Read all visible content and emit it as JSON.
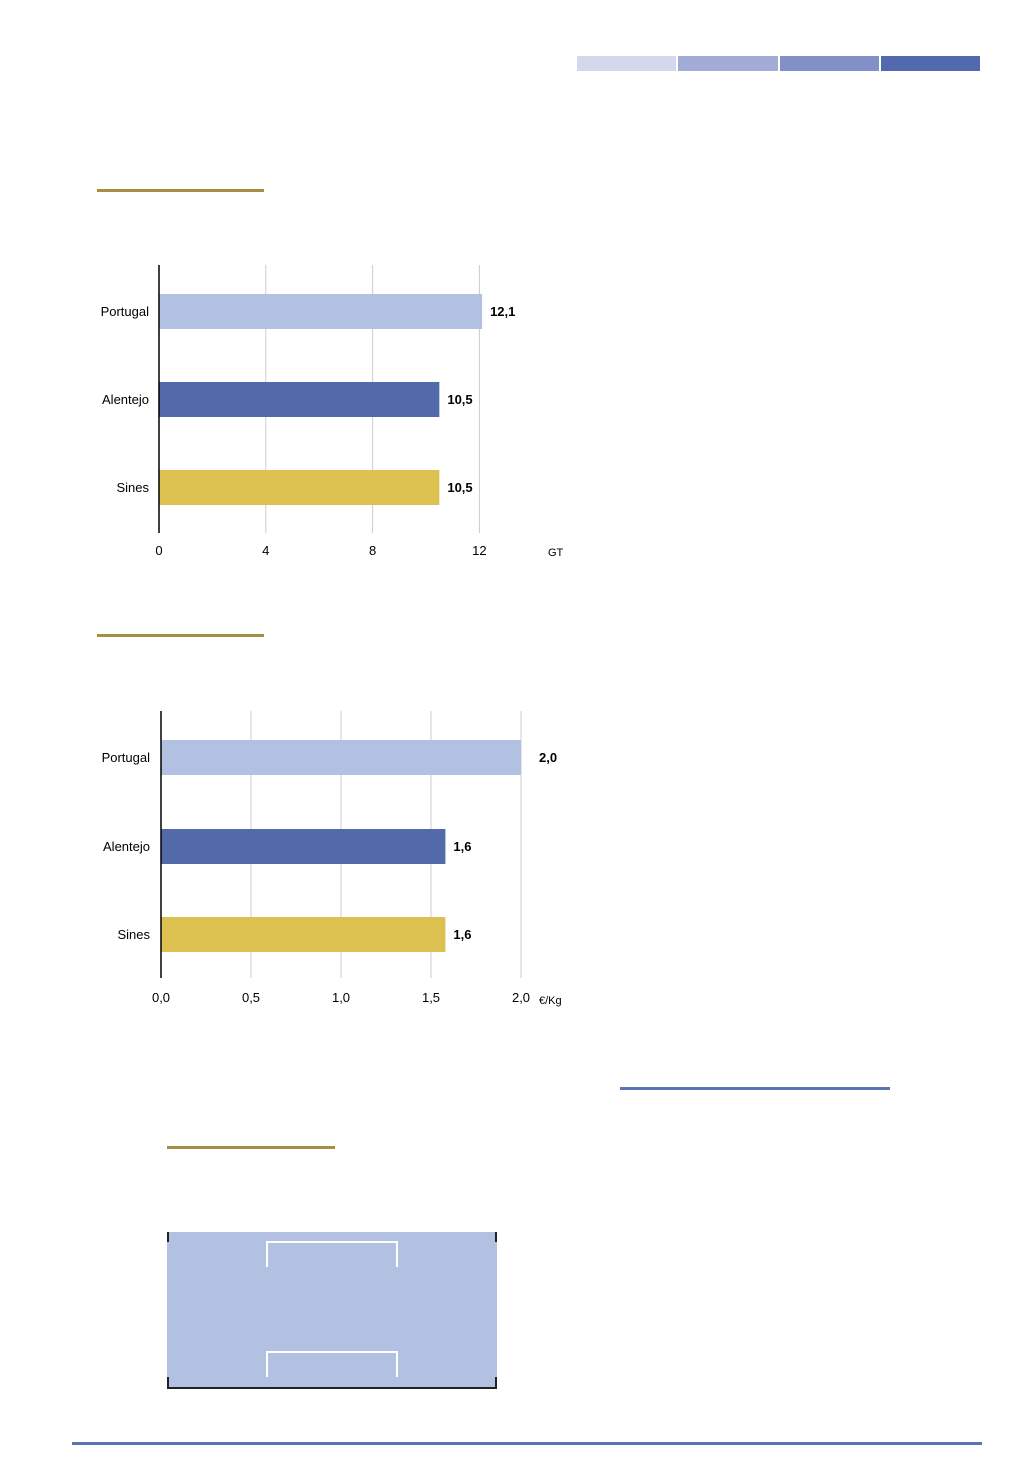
{
  "header": {
    "bar_colors": [
      "#d3d8ec",
      "#a3acd6",
      "#8190c6",
      "#5369ad"
    ]
  },
  "colors": {
    "accent_rule": "#a88e45",
    "blue_rule": "#5b72b3",
    "portugal": "#b2c1e2",
    "alentejo": "#526aaa",
    "sines": "#dcc150",
    "grid": "#cccccc"
  },
  "chart_data": [
    {
      "type": "bar",
      "orientation": "horizontal",
      "categories": [
        "Portugal",
        "Alentejo",
        "Sines"
      ],
      "values": [
        12.1,
        10.5,
        10.5
      ],
      "value_labels": [
        "12,1",
        "10,5",
        "10,5"
      ],
      "bar_colors": [
        "#b2c1e2",
        "#526aaa",
        "#dcc150"
      ],
      "xticks": [
        0,
        4,
        8,
        12
      ],
      "xtick_labels": [
        "0",
        "4",
        "8",
        "12"
      ],
      "xlim": [
        0,
        12
      ],
      "unit": "GT",
      "grid": true
    },
    {
      "type": "bar",
      "orientation": "horizontal",
      "categories": [
        "Portugal",
        "Alentejo",
        "Sines"
      ],
      "values": [
        2.0,
        1.58,
        1.58
      ],
      "value_labels": [
        "2,0",
        "1,6",
        "1,6"
      ],
      "bar_colors": [
        "#b2c1e2",
        "#526aaa",
        "#dcc150"
      ],
      "xticks": [
        0,
        0.5,
        1.0,
        1.5,
        2.0
      ],
      "xtick_labels": [
        "0,0",
        "0,5",
        "1,0",
        "1,5",
        "2,0"
      ],
      "xlim": [
        0,
        2.0
      ],
      "unit": "€/Kg",
      "grid": true
    }
  ]
}
